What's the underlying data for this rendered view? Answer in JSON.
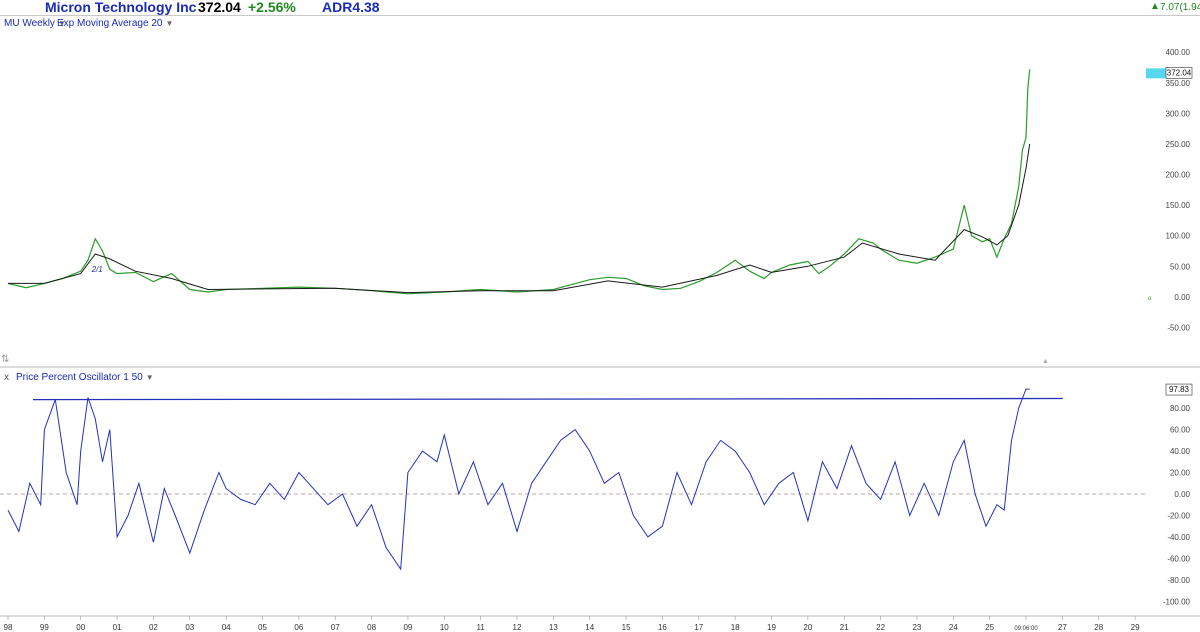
{
  "header": {
    "company": "Micron Technology Inc",
    "price": "372.04",
    "change": "+2.56%",
    "adr": "ADR4.38",
    "right_change": "7.07(1.94%)",
    "up_icon": "up-arrow-icon",
    "colors": {
      "company": "#1a2bb5",
      "price": "#000000",
      "change": "#1f8a1f",
      "adr": "#1a2bb5",
      "right_change": "#1f8a1f"
    }
  },
  "subheader": {
    "symbol_label": "MU Weekly",
    "overlay_label": "Exp Moving Average 20"
  },
  "lower_panel": {
    "close_label": "x",
    "indicator_label": "Price Percent Oscillator 1 50"
  },
  "time_axis": {
    "labels": [
      "98",
      "99",
      "00",
      "01",
      "02",
      "03",
      "04",
      "05",
      "06",
      "07",
      "08",
      "09",
      "10",
      "11",
      "12",
      "13",
      "14",
      "15",
      "16",
      "17",
      "18",
      "19",
      "20",
      "21",
      "22",
      "23",
      "24",
      "25",
      "09:06:00",
      "27",
      "28",
      "29"
    ]
  },
  "chart_data": [
    {
      "type": "line",
      "title": "Micron Technology Inc",
      "series": [
        {
          "name": "MU Weekly",
          "color": "#2a9d2a",
          "x": [
            1998.0,
            1998.5,
            1999.0,
            1999.5,
            2000.0,
            2000.2,
            2000.4,
            2000.6,
            2000.8,
            2001.0,
            2001.5,
            2002.0,
            2002.5,
            2003.0,
            2003.5,
            2004.0,
            2005.0,
            2006.0,
            2007.0,
            2008.0,
            2009.0,
            2010.0,
            2011.0,
            2012.0,
            2013.0,
            2013.5,
            2014.0,
            2014.5,
            2015.0,
            2015.5,
            2016.0,
            2016.5,
            2017.0,
            2017.5,
            2018.0,
            2018.4,
            2018.8,
            2019.0,
            2019.5,
            2020.0,
            2020.3,
            2020.6,
            2021.0,
            2021.4,
            2021.8,
            2022.0,
            2022.5,
            2023.0,
            2023.5,
            2024.0,
            2024.3,
            2024.5,
            2024.8,
            2025.0,
            2025.2,
            2025.4,
            2025.6,
            2025.8,
            2025.9,
            2026.0,
            2026.05,
            2026.1
          ],
          "y": [
            22,
            15,
            22,
            30,
            42,
            60,
            95,
            75,
            45,
            38,
            40,
            25,
            38,
            12,
            8,
            12,
            14,
            16,
            14,
            10,
            5,
            8,
            12,
            8,
            12,
            20,
            28,
            32,
            30,
            18,
            12,
            14,
            25,
            40,
            60,
            42,
            30,
            40,
            52,
            58,
            38,
            50,
            70,
            95,
            88,
            78,
            60,
            55,
            65,
            78,
            150,
            100,
            90,
            95,
            65,
            95,
            120,
            180,
            240,
            260,
            340,
            372
          ]
        },
        {
          "name": "Exp Moving Average 20",
          "color": "#1a1a1a",
          "x": [
            1998.0,
            1999.0,
            2000.0,
            2000.4,
            2000.8,
            2001.5,
            2002.5,
            2003.5,
            2005.0,
            2007.0,
            2009.0,
            2011.0,
            2013.0,
            2014.5,
            2016.0,
            2017.5,
            2018.4,
            2019.0,
            2020.0,
            2021.0,
            2021.5,
            2022.5,
            2023.5,
            2024.3,
            2024.8,
            2025.2,
            2025.5,
            2025.8,
            2026.0,
            2026.1
          ],
          "y": [
            22,
            22,
            38,
            70,
            62,
            42,
            30,
            12,
            13,
            14,
            7,
            10,
            10,
            26,
            16,
            35,
            52,
            40,
            50,
            65,
            88,
            70,
            60,
            110,
            98,
            85,
            100,
            150,
            210,
            250
          ]
        }
      ],
      "ylim": [
        -100,
        420
      ],
      "yticks": [
        "400.00",
        "350.00",
        "300.00",
        "250.00",
        "200.00",
        "150.00",
        "100.00",
        "50.00",
        "0.00",
        "-50.00"
      ],
      "last_value_label": "372.04",
      "annotation": "2/1",
      "grid": false
    },
    {
      "type": "line",
      "title": "Price Percent Oscillator 1 50",
      "series": [
        {
          "name": "Price Percent Oscillator 1 50",
          "color": "#2233bb",
          "x": [
            1998.0,
            1998.3,
            1998.6,
            1998.9,
            1999.0,
            1999.3,
            1999.6,
            1999.9,
            2000.0,
            2000.2,
            2000.4,
            2000.6,
            2000.8,
            2001.0,
            2001.3,
            2001.6,
            2002.0,
            2002.3,
            2002.6,
            2003.0,
            2003.4,
            2003.8,
            2004.0,
            2004.4,
            2004.8,
            2005.2,
            2005.6,
            2006.0,
            2006.4,
            2006.8,
            2007.2,
            2007.6,
            2008.0,
            2008.4,
            2008.8,
            2009.0,
            2009.4,
            2009.8,
            2010.0,
            2010.4,
            2010.8,
            2011.2,
            2011.6,
            2012.0,
            2012.4,
            2012.8,
            2013.2,
            2013.6,
            2014.0,
            2014.4,
            2014.8,
            2015.2,
            2015.6,
            2016.0,
            2016.4,
            2016.8,
            2017.2,
            2017.6,
            2018.0,
            2018.4,
            2018.8,
            2019.2,
            2019.6,
            2020.0,
            2020.4,
            2020.8,
            2021.2,
            2021.6,
            2022.0,
            2022.4,
            2022.8,
            2023.2,
            2023.6,
            2024.0,
            2024.3,
            2024.6,
            2024.9,
            2025.2,
            2025.4,
            2025.6,
            2025.8,
            2026.0,
            2026.1
          ],
          "y": [
            -15,
            -35,
            10,
            -10,
            60,
            88,
            20,
            -10,
            40,
            90,
            70,
            30,
            60,
            -40,
            -20,
            10,
            -45,
            5,
            -20,
            -55,
            -15,
            20,
            5,
            -5,
            -10,
            10,
            -5,
            20,
            5,
            -10,
            0,
            -30,
            -10,
            -50,
            -70,
            20,
            40,
            30,
            55,
            0,
            30,
            -10,
            10,
            -35,
            10,
            30,
            50,
            60,
            40,
            10,
            20,
            -20,
            -40,
            -30,
            20,
            -10,
            30,
            50,
            40,
            20,
            -10,
            10,
            20,
            -25,
            30,
            5,
            45,
            10,
            -5,
            30,
            -20,
            10,
            -20,
            30,
            50,
            0,
            -30,
            -10,
            -15,
            50,
            80,
            97.83,
            97.83
          ]
        }
      ],
      "ylim": [
        -110,
        110
      ],
      "yticks": [
        "80.00",
        "60.00",
        "40.00",
        "20.00",
        "0.00",
        "-20.00",
        "-40.00",
        "-60.00",
        "-80.00",
        "-100.00"
      ],
      "reference_line": {
        "x": [
          1998.0,
          2026.6
        ],
        "y": [
          88,
          89
        ]
      },
      "zero_line": 0,
      "last_value_label": "97.83",
      "grid": false
    }
  ]
}
